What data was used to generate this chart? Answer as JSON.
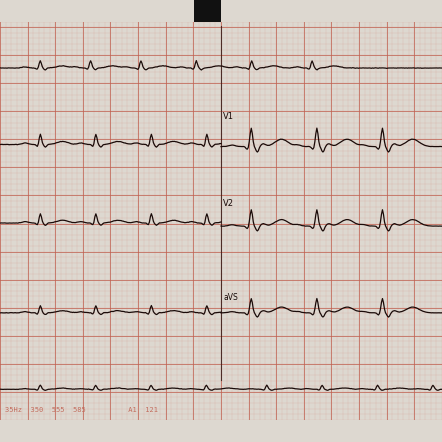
{
  "paper_color": "#e8b0a0",
  "minor_grid_color": "#d49080",
  "major_grid_color": "#c06050",
  "ecg_color": "#1a0a08",
  "top_strip_color": "#ddd8d0",
  "bottom_strip_color": "#ccc8c0",
  "black_marker": "#111111",
  "bottom_text": "35Hz  350  555  585          A1  121",
  "label_v1": "V1",
  "label_v2": "V2",
  "label_avs": "aVS",
  "fig_width": 4.42,
  "fig_height": 4.42,
  "dpi": 100
}
